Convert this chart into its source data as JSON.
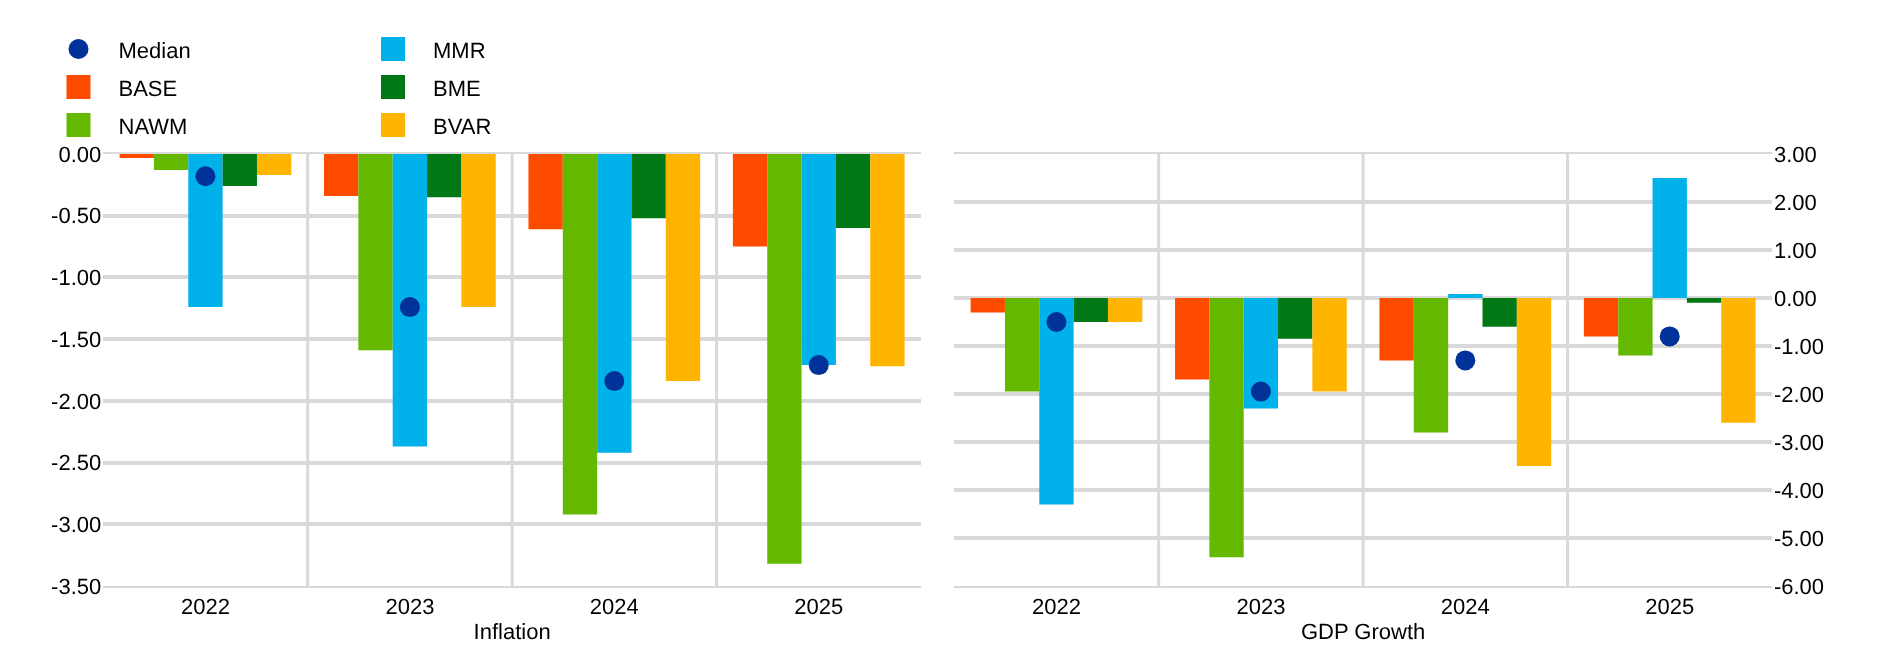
{
  "chart_data": [
    {
      "type": "bar",
      "xlabel": "Inflation",
      "categories": [
        "2022",
        "2023",
        "2024",
        "2025"
      ],
      "series": [
        {
          "name": "Median",
          "type": "scatter",
          "marker": "circle",
          "color": "#003299",
          "values": [
            -0.18,
            -1.24,
            -1.84,
            -1.71
          ]
        },
        {
          "name": "BASE",
          "color": "#ff4b00",
          "values": [
            -0.03,
            -0.34,
            -0.61,
            -0.75
          ]
        },
        {
          "name": "NAWM",
          "color": "#65b800",
          "values": [
            -0.13,
            -1.59,
            -2.92,
            -3.32
          ]
        },
        {
          "name": "MMR",
          "color": "#00b1ea",
          "values": [
            -1.24,
            -2.37,
            -2.42,
            -1.71
          ]
        },
        {
          "name": "BME",
          "color": "#007816",
          "values": [
            -0.26,
            -0.35,
            -0.52,
            -0.6
          ]
        },
        {
          "name": "BVAR",
          "color": "#ffb400",
          "values": [
            -0.17,
            -1.24,
            -1.84,
            -1.72
          ]
        }
      ],
      "ylim": [
        -3.5,
        0
      ],
      "yticks": [
        {
          "value": 0,
          "label": "0.00"
        },
        {
          "value": -0.5,
          "label": "-0.50"
        },
        {
          "value": -1,
          "label": "-1.00"
        },
        {
          "value": -1.5,
          "label": "-1.50"
        },
        {
          "value": -2,
          "label": "-2.00"
        },
        {
          "value": -2.5,
          "label": "-2.50"
        },
        {
          "value": -3,
          "label": "-3.00"
        },
        {
          "value": -3.5,
          "label": "-3.50"
        }
      ],
      "grid": true,
      "legend": "top left"
    },
    {
      "type": "bar",
      "xlabel": "GDP Growth",
      "categories": [
        "2022",
        "2023",
        "2024",
        "2025"
      ],
      "series": [
        {
          "type": "scatter",
          "marker": "circle",
          "axis": "y2",
          "color": "#003299",
          "values": [
            -0.5,
            -1.95,
            -1.3,
            -0.8
          ]
        },
        {
          "axis": "y2",
          "color": "#ff4b00",
          "values": [
            -0.3,
            -1.7,
            -1.3,
            -0.8
          ]
        },
        {
          "axis": "y2",
          "color": "#65b800",
          "values": [
            -1.95,
            -5.4,
            -2.8,
            -1.2
          ]
        },
        {
          "axis": "y2",
          "color": "#00b1ea",
          "values": [
            -4.3,
            -2.3,
            0.05,
            2.5
          ]
        },
        {
          "axis": "y2",
          "color": "#007816",
          "values": [
            -0.5,
            -0.85,
            -0.6,
            -0.1
          ]
        },
        {
          "axis": "y2",
          "color": "#ffb400",
          "values": [
            -0.5,
            -1.95,
            -3.5,
            -2.6
          ]
        }
      ],
      "y2lim": [
        -6,
        3
      ],
      "y2ticks": [
        {
          "value": 3,
          "label": "3.00"
        },
        {
          "value": 2,
          "label": "2.00"
        },
        {
          "value": 1,
          "label": "1.00"
        },
        {
          "value": 0,
          "label": "0.00"
        },
        {
          "value": -1,
          "label": "-1.00"
        },
        {
          "value": -2,
          "label": "-2.00"
        },
        {
          "value": -3,
          "label": "-3.00"
        },
        {
          "value": -4,
          "label": "-4.00"
        },
        {
          "value": -5,
          "label": "-5.00"
        },
        {
          "value": -6,
          "label": "-6.00"
        }
      ],
      "grid": true
    }
  ]
}
